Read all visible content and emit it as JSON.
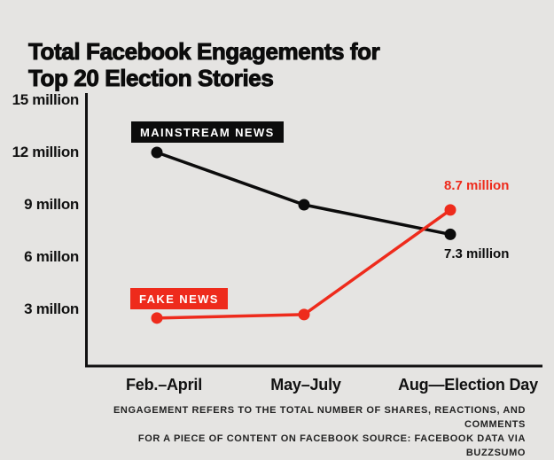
{
  "title": {
    "line1": "Total Facebook Engagements for",
    "line2": "Top 20 Election Stories"
  },
  "colors": {
    "background": "#e5e4e2",
    "axis": "#111111",
    "mainstream": "#0c0c0c",
    "fake_news_red": "#ee2b1c"
  },
  "chart_data": {
    "type": "line",
    "title": "Total Facebook Engagements for Top 20 Election Stories",
    "categories": [
      "Feb.–April",
      "May–July",
      "Aug—Election Day"
    ],
    "series": [
      {
        "name": "MAINSTREAM NEWS",
        "color": "#0c0c0c",
        "values": [
          12,
          9,
          7.3
        ],
        "end_label": "7.3 million"
      },
      {
        "name": "FAKE NEWS",
        "color": "#ee2b1c",
        "values": [
          2.5,
          2.7,
          8.7
        ],
        "end_label": "8.7 million"
      }
    ],
    "y_ticks": [
      {
        "label": "15 million",
        "value": 15
      },
      {
        "label": "12 million",
        "value": 12
      },
      {
        "label": "9 millon",
        "value": 9
      },
      {
        "label": "6 millon",
        "value": 6
      },
      {
        "label": "3 millon",
        "value": 3
      }
    ],
    "ylim": [
      0,
      15.3
    ],
    "xlabel": "",
    "ylabel": "",
    "grid": false,
    "legend_position": "inline-badges"
  },
  "footer": {
    "line1": "ENGAGEMENT REFERS TO THE TOTAL NUMBER OF SHARES, REACTIONS, AND COMMENTS",
    "line2": "FOR A PIECE OF CONTENT ON FACEBOOK SOURCE: FACEBOOK DATA VIA BUZZSUMO"
  }
}
